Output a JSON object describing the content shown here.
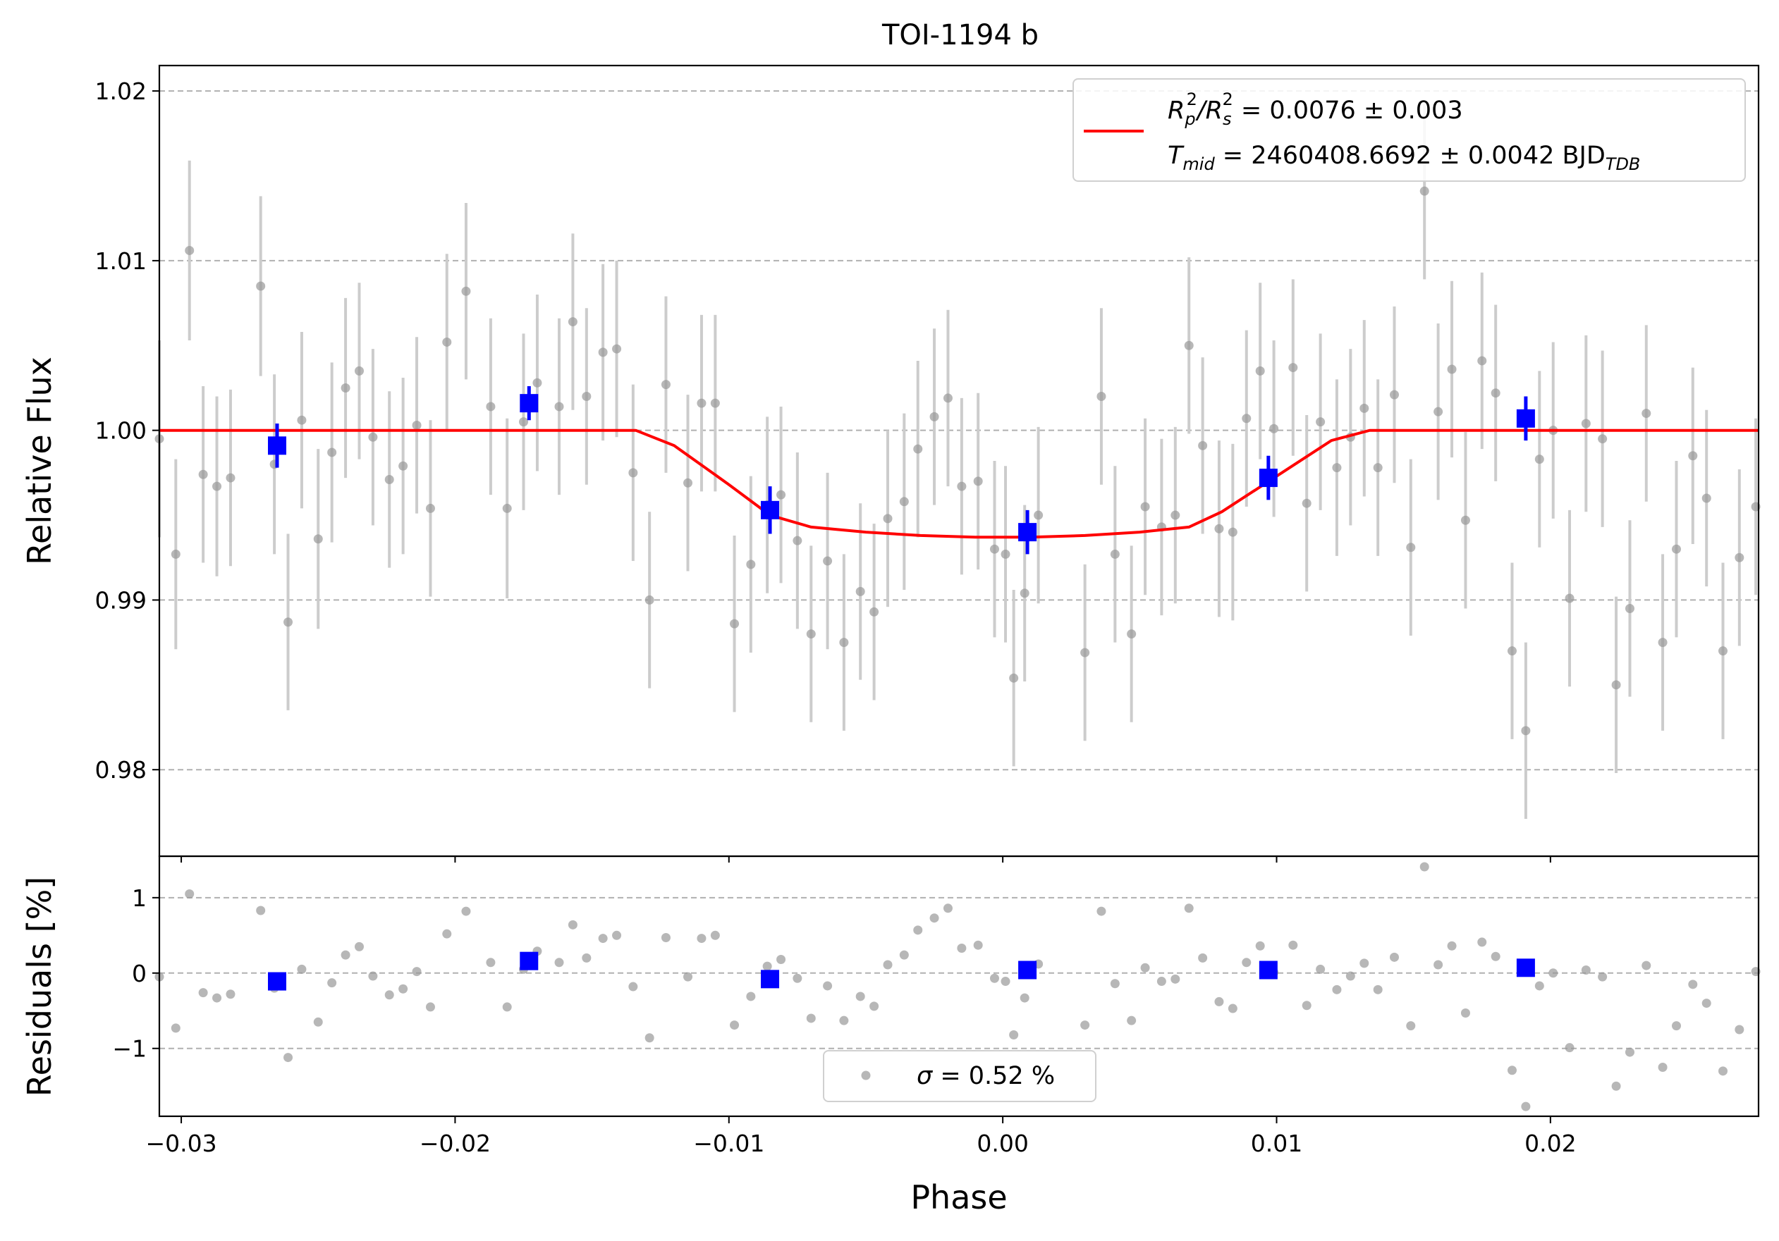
{
  "chart_data": [
    {
      "panel": "main",
      "type": "scatter",
      "title": "TOI-1194 b",
      "xlabel": "",
      "ylabel": "Relative Flux",
      "xlim": [
        -0.0308,
        0.0276
      ],
      "ylim": [
        0.9749,
        1.0215
      ],
      "xticks": [
        -0.03,
        -0.02,
        -0.01,
        0.0,
        0.01,
        0.02
      ],
      "yticks": [
        0.98,
        0.99,
        1.0,
        1.01,
        1.02
      ],
      "ytick_labels": [
        "0.98",
        "0.99",
        "1.00",
        "1.01",
        "1.02"
      ],
      "grid": "horizontal dashed",
      "legend_position": "upper-right",
      "legend": [
        {
          "label_main": "R",
          "sub1": "p",
          "sup1": "2",
          "slash": "/R",
          "sub2": "s",
          "sup2": "2",
          "rest": " = 0.0076 ± 0.003"
        },
        {
          "label_main": "T",
          "sub1": "mid",
          "rest": " = 2460408.6692 ± 0.0042 BJD",
          "sub2": "TDB"
        }
      ],
      "colors": {
        "raw": "#999999",
        "raw_err": "#cccccc",
        "binned": "#0000ff",
        "model": "#ff0000",
        "grid": "#b0b0b0"
      },
      "raw_points": {
        "x": [
          -0.0308,
          -0.0302,
          -0.0297,
          -0.0292,
          -0.0287,
          -0.0282,
          -0.0271,
          -0.0266,
          -0.0261,
          -0.0256,
          -0.025,
          -0.0245,
          -0.024,
          -0.0235,
          -0.023,
          -0.0224,
          -0.0219,
          -0.0214,
          -0.0209,
          -0.0203,
          -0.0196,
          -0.0187,
          -0.0181,
          -0.0175,
          -0.017,
          -0.0162,
          -0.0157,
          -0.0152,
          -0.0146,
          -0.0141,
          -0.0135,
          -0.0129,
          -0.0123,
          -0.0115,
          -0.011,
          -0.0105,
          -0.0098,
          -0.0092,
          -0.0086,
          -0.0081,
          -0.0075,
          -0.007,
          -0.0064,
          -0.0058,
          -0.0052,
          -0.0047,
          -0.0042,
          -0.0036,
          -0.0031,
          -0.0025,
          -0.002,
          -0.0015,
          -0.0009,
          -0.0003,
          0.0001,
          0.0004,
          0.0008,
          0.0013,
          0.003,
          0.0036,
          0.0041,
          0.0047,
          0.0052,
          0.0058,
          0.0063,
          0.0068,
          0.0073,
          0.0079,
          0.0084,
          0.0089,
          0.0094,
          0.0099,
          0.0106,
          0.0111,
          0.0116,
          0.0122,
          0.0127,
          0.0132,
          0.0137,
          0.0143,
          0.0149,
          0.0154,
          0.0159,
          0.0164,
          0.0169,
          0.0175,
          0.018,
          0.0186,
          0.0191,
          0.0196,
          0.0201,
          0.0207,
          0.0213,
          0.0219,
          0.0224,
          0.0229,
          0.0235,
          0.0241,
          0.0246,
          0.0252,
          0.0257,
          0.0263,
          0.0269,
          0.0275
        ],
        "y": [
          0.9995,
          0.9927,
          1.0106,
          0.9974,
          0.9967,
          0.9972,
          1.0085,
          0.998,
          0.9887,
          1.0006,
          0.9936,
          0.9987,
          1.0025,
          1.0035,
          0.9996,
          0.9971,
          0.9979,
          1.0003,
          0.9954,
          1.0052,
          1.0082,
          1.0014,
          0.9954,
          1.0005,
          1.0028,
          1.0014,
          1.0064,
          1.002,
          1.0046,
          1.0048,
          0.9975,
          0.99,
          1.0027,
          0.9969,
          1.0016,
          1.0016,
          0.9886,
          0.9921,
          0.9956,
          0.9962,
          0.9935,
          0.988,
          0.9923,
          0.9875,
          0.9905,
          0.9893,
          0.9948,
          0.9958,
          0.9989,
          1.0008,
          1.0019,
          0.9967,
          0.997,
          0.993,
          0.9927,
          0.9854,
          0.9904,
          0.995,
          0.9869,
          1.002,
          0.9927,
          0.988,
          0.9955,
          0.9943,
          0.995,
          1.005,
          0.9991,
          0.9942,
          0.994,
          1.0007,
          1.0035,
          1.0001,
          1.0037,
          0.9957,
          1.0005,
          0.9978,
          0.9996,
          1.0013,
          0.9978,
          1.0021,
          0.9931,
          1.0141,
          1.0011,
          1.0036,
          0.9947,
          1.0041,
          1.0022,
          0.987,
          0.9823,
          0.9983,
          1.0,
          0.9901,
          1.0004,
          0.9995,
          0.985,
          0.9895,
          1.001,
          0.9875,
          0.993,
          0.9985,
          0.996,
          0.987,
          0.9925,
          0.9955
        ],
        "err": [
          0.0058,
          0.0056,
          0.0053,
          0.0052,
          0.0053,
          0.0052,
          0.0053,
          0.0053,
          0.0052,
          0.0052,
          0.0053,
          0.0053,
          0.0053,
          0.0052,
          0.0052,
          0.0052,
          0.0052,
          0.0052,
          0.0052,
          0.0052,
          0.0052,
          0.0052,
          0.0053,
          0.0052,
          0.0052,
          0.0052,
          0.0052,
          0.0052,
          0.0052,
          0.0052,
          0.0052,
          0.0052,
          0.0052,
          0.0052,
          0.0052,
          0.0052,
          0.0052,
          0.0052,
          0.0052,
          0.0052,
          0.0052,
          0.0052,
          0.0052,
          0.0052,
          0.0052,
          0.0052,
          0.0052,
          0.0052,
          0.0052,
          0.0052,
          0.0052,
          0.0052,
          0.0052,
          0.0052,
          0.0052,
          0.0052,
          0.0052,
          0.0052,
          0.0052,
          0.0052,
          0.0052,
          0.0052,
          0.0052,
          0.0052,
          0.0052,
          0.0052,
          0.0052,
          0.0052,
          0.0052,
          0.0052,
          0.0052,
          0.0052,
          0.0052,
          0.0052,
          0.0052,
          0.0052,
          0.0052,
          0.0052,
          0.0052,
          0.0052,
          0.0052,
          0.0052,
          0.0052,
          0.0052,
          0.0052,
          0.0052,
          0.0052,
          0.0052,
          0.0052,
          0.0052,
          0.0052,
          0.0052,
          0.0052,
          0.0052,
          0.0052,
          0.0052,
          0.0052,
          0.0052,
          0.0052,
          0.0052,
          0.0052,
          0.0052,
          0.0052,
          0.0052
        ]
      },
      "binned_points": {
        "x": [
          -0.0265,
          -0.0173,
          -0.0085,
          0.0009,
          0.0097,
          0.0191
        ],
        "y": [
          0.9991,
          1.0016,
          0.9953,
          0.994,
          0.9972,
          1.0007
        ],
        "err": [
          0.0013,
          0.001,
          0.0014,
          0.0013,
          0.0013,
          0.0013
        ]
      },
      "model": {
        "x": [
          -0.0308,
          -0.0134,
          -0.012,
          -0.01,
          -0.0085,
          -0.007,
          -0.005,
          -0.003,
          -0.001,
          0.0,
          0.001,
          0.003,
          0.005,
          0.0068,
          0.008,
          0.01,
          0.012,
          0.0134,
          0.0276
        ],
        "y": [
          1.0,
          1.0,
          0.9991,
          0.9968,
          0.995,
          0.9943,
          0.994,
          0.9938,
          0.9937,
          0.9937,
          0.9937,
          0.9938,
          0.994,
          0.9943,
          0.9952,
          0.9973,
          0.9994,
          1.0,
          1.0
        ]
      }
    },
    {
      "panel": "residuals",
      "type": "scatter",
      "xlabel": "Phase",
      "ylabel": "Residuals [%]",
      "xlim": [
        -0.0308,
        0.0276
      ],
      "ylim": [
        -1.9,
        1.55
      ],
      "xticks": [
        -0.03,
        -0.02,
        -0.01,
        0.0,
        0.01,
        0.02
      ],
      "xtick_labels": [
        "−0.03",
        "−0.02",
        "−0.01",
        "0.00",
        "0.01",
        "0.02"
      ],
      "yticks": [
        -1,
        0,
        1
      ],
      "ytick_labels": [
        "−1",
        "0",
        "1"
      ],
      "grid": "horizontal dashed",
      "legend_position": "lower-center",
      "legend": [
        {
          "symbol": "σ",
          "rest": " = 0.52 %"
        }
      ],
      "raw_points": {
        "x": [
          -0.0308,
          -0.0302,
          -0.0297,
          -0.0292,
          -0.0287,
          -0.0282,
          -0.0271,
          -0.0266,
          -0.0261,
          -0.0256,
          -0.025,
          -0.0245,
          -0.024,
          -0.0235,
          -0.023,
          -0.0224,
          -0.0219,
          -0.0214,
          -0.0209,
          -0.0203,
          -0.0196,
          -0.0187,
          -0.0181,
          -0.0175,
          -0.017,
          -0.0162,
          -0.0157,
          -0.0152,
          -0.0146,
          -0.0141,
          -0.0135,
          -0.0129,
          -0.0123,
          -0.0115,
          -0.011,
          -0.0105,
          -0.0098,
          -0.0092,
          -0.0086,
          -0.0081,
          -0.0075,
          -0.007,
          -0.0064,
          -0.0058,
          -0.0052,
          -0.0047,
          -0.0042,
          -0.0036,
          -0.0031,
          -0.0025,
          -0.002,
          -0.0015,
          -0.0009,
          -0.0003,
          0.0001,
          0.0004,
          0.0008,
          0.0013,
          0.003,
          0.0036,
          0.0041,
          0.0047,
          0.0052,
          0.0058,
          0.0063,
          0.0068,
          0.0073,
          0.0079,
          0.0084,
          0.0089,
          0.0094,
          0.0099,
          0.0106,
          0.0111,
          0.0116,
          0.0122,
          0.0127,
          0.0132,
          0.0137,
          0.0143,
          0.0149,
          0.0154,
          0.0159,
          0.0164,
          0.0169,
          0.0175,
          0.018,
          0.0186,
          0.0191,
          0.0196,
          0.0201,
          0.0207,
          0.0213,
          0.0219,
          0.0224,
          0.0229,
          0.0235,
          0.0241,
          0.0246,
          0.0252,
          0.0257,
          0.0263,
          0.0269,
          0.0275
        ],
        "y": [
          -0.05,
          -0.73,
          1.05,
          -0.26,
          -0.33,
          -0.28,
          0.83,
          -0.2,
          -1.12,
          0.05,
          -0.65,
          -0.13,
          0.24,
          0.35,
          -0.04,
          -0.29,
          -0.21,
          0.02,
          -0.45,
          0.52,
          0.82,
          0.14,
          -0.45,
          0.05,
          0.29,
          0.14,
          0.64,
          0.2,
          0.46,
          0.5,
          -0.18,
          -0.86,
          0.47,
          -0.05,
          0.46,
          0.5,
          -0.69,
          -0.31,
          0.09,
          0.18,
          -0.07,
          -0.6,
          -0.17,
          -0.63,
          -0.31,
          -0.44,
          0.11,
          0.24,
          0.57,
          0.73,
          0.86,
          0.33,
          0.37,
          -0.07,
          -0.11,
          -0.82,
          -0.33,
          0.12,
          -0.69,
          0.82,
          -0.14,
          -0.63,
          0.07,
          -0.11,
          -0.08,
          0.86,
          0.2,
          -0.38,
          -0.47,
          0.14,
          0.36,
          0.01,
          0.37,
          -0.43,
          0.05,
          -0.22,
          -0.04,
          0.13,
          -0.22,
          0.21,
          -0.7,
          1.41,
          0.11,
          0.36,
          -0.53,
          0.41,
          0.22,
          -1.29,
          -1.77,
          -0.17,
          0.0,
          -0.99,
          0.04,
          -0.05,
          -1.5,
          -1.05,
          0.1,
          -1.25,
          -0.7,
          -0.15,
          -0.4,
          -1.3,
          -0.75,
          0.02
        ]
      },
      "binned_points": {
        "x": [
          -0.0265,
          -0.0173,
          -0.0085,
          0.0009,
          0.0097,
          0.0191
        ],
        "y": [
          -0.11,
          0.16,
          -0.08,
          0.04,
          0.04,
          0.07
        ]
      }
    }
  ]
}
